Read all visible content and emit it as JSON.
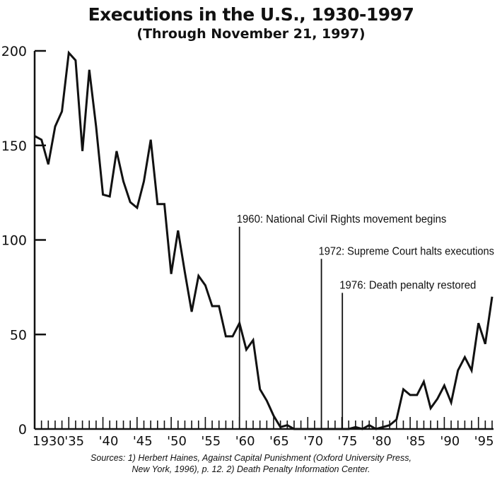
{
  "chart_data": {
    "type": "line",
    "title": "Executions in the U.S., 1930-1997",
    "subtitle": "(Through November 21, 1997)",
    "xlabel": "",
    "ylabel": "",
    "xlim": [
      1930,
      1997
    ],
    "ylim": [
      0,
      200
    ],
    "y_ticks": [
      0,
      50,
      100,
      150,
      200
    ],
    "x_tick_labels": [
      {
        "year": 1930,
        "label": "1930"
      },
      {
        "year": 1935,
        "label": "'35"
      },
      {
        "year": 1940,
        "label": "'40"
      },
      {
        "year": 1945,
        "label": "'45"
      },
      {
        "year": 1950,
        "label": "'50"
      },
      {
        "year": 1955,
        "label": "'55"
      },
      {
        "year": 1960,
        "label": "'60"
      },
      {
        "year": 1965,
        "label": "'65"
      },
      {
        "year": 1970,
        "label": "'70"
      },
      {
        "year": 1975,
        "label": "'75"
      },
      {
        "year": 1980,
        "label": "'80"
      },
      {
        "year": 1985,
        "label": "'85"
      },
      {
        "year": 1990,
        "label": "'90"
      },
      {
        "year": 1995,
        "label": "'95"
      }
    ],
    "grid": false,
    "x": [
      1930,
      1931,
      1932,
      1933,
      1934,
      1935,
      1936,
      1937,
      1938,
      1939,
      1940,
      1941,
      1942,
      1943,
      1944,
      1945,
      1946,
      1947,
      1948,
      1949,
      1950,
      1951,
      1952,
      1953,
      1954,
      1955,
      1956,
      1957,
      1958,
      1959,
      1960,
      1961,
      1962,
      1963,
      1964,
      1965,
      1966,
      1967,
      1968,
      1969,
      1970,
      1971,
      1972,
      1973,
      1974,
      1975,
      1976,
      1977,
      1978,
      1979,
      1980,
      1981,
      1982,
      1983,
      1984,
      1985,
      1986,
      1987,
      1988,
      1989,
      1990,
      1991,
      1992,
      1993,
      1994,
      1995,
      1996,
      1997
    ],
    "values": [
      155,
      153,
      140,
      160,
      168,
      199,
      195,
      147,
      190,
      160,
      124,
      123,
      147,
      131,
      120,
      117,
      131,
      153,
      119,
      119,
      82,
      105,
      83,
      62,
      81,
      76,
      65,
      65,
      49,
      49,
      56,
      42,
      47,
      21,
      15,
      7,
      1,
      2,
      0,
      0,
      0,
      0,
      0,
      0,
      0,
      0,
      0,
      1,
      0,
      2,
      0,
      1,
      2,
      5,
      21,
      18,
      18,
      25,
      11,
      16,
      23,
      14,
      31,
      38,
      31,
      56,
      45,
      70
    ],
    "annotations": [
      {
        "year": 1960,
        "marker_height": 107,
        "text": "1960: National Civil Rights movement begins"
      },
      {
        "year": 1972,
        "marker_height": 90,
        "text": "1972: Supreme Court halts executions"
      },
      {
        "year": 1976,
        "marker_height": 72,
        "text": "1976: Death penalty restored"
      }
    ],
    "line_color": "#111111"
  },
  "sources": {
    "prefix": "Sources: 1) Herbert Haines, ",
    "book": "Against Capital Punishment",
    "line1_rest": " (Oxford University Press,",
    "line2": "New York, 1996), p. 12. 2) Death Penalty Information Center."
  }
}
